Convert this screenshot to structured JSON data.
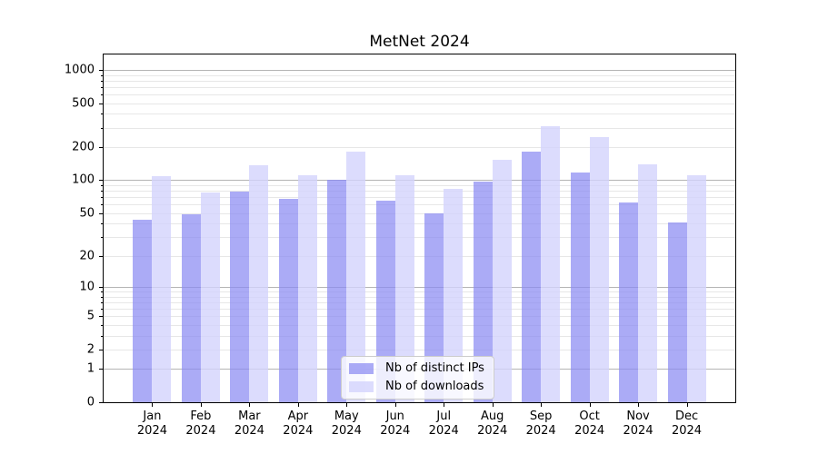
{
  "chart_data": {
    "type": "bar",
    "title": "MetNet 2024",
    "categories": [
      "Jan",
      "Feb",
      "Mar",
      "Apr",
      "May",
      "Jun",
      "Jul",
      "Aug",
      "Sep",
      "Oct",
      "Nov",
      "Dec"
    ],
    "year_label": "2024",
    "series": [
      {
        "name": "Nb of distinct IPs",
        "values": [
          43,
          49,
          78,
          67,
          100,
          65,
          50,
          98,
          183,
          117,
          63,
          41
        ],
        "color": "#a9a9f5",
        "fill": "rgba(138,138,242,0.72)"
      },
      {
        "name": "Nb of downloads",
        "values": [
          108,
          77,
          137,
          112,
          182,
          111,
          84,
          153,
          308,
          245,
          140,
          110
        ],
        "color": "#dcdcfa",
        "fill": "rgba(210,210,252,0.78)"
      }
    ],
    "yscale": "symlog-log10(1+v)",
    "yticks": [
      0,
      1,
      2,
      5,
      10,
      20,
      50,
      100,
      200,
      500,
      1000
    ],
    "major_grid_values": [
      1,
      10,
      100,
      1000
    ],
    "minor_grid_multiples": [
      2,
      3,
      4,
      5,
      6,
      7,
      8,
      9
    ],
    "ylim": [
      0,
      1400
    ],
    "xlabel": "",
    "ylabel": "",
    "grid": "both",
    "legend_position": "lower center",
    "colors": {
      "major_grid": "#b4b4b4",
      "minor_grid": "#e7e7e7",
      "axis": "#000000",
      "background": "#ffffff"
    }
  }
}
